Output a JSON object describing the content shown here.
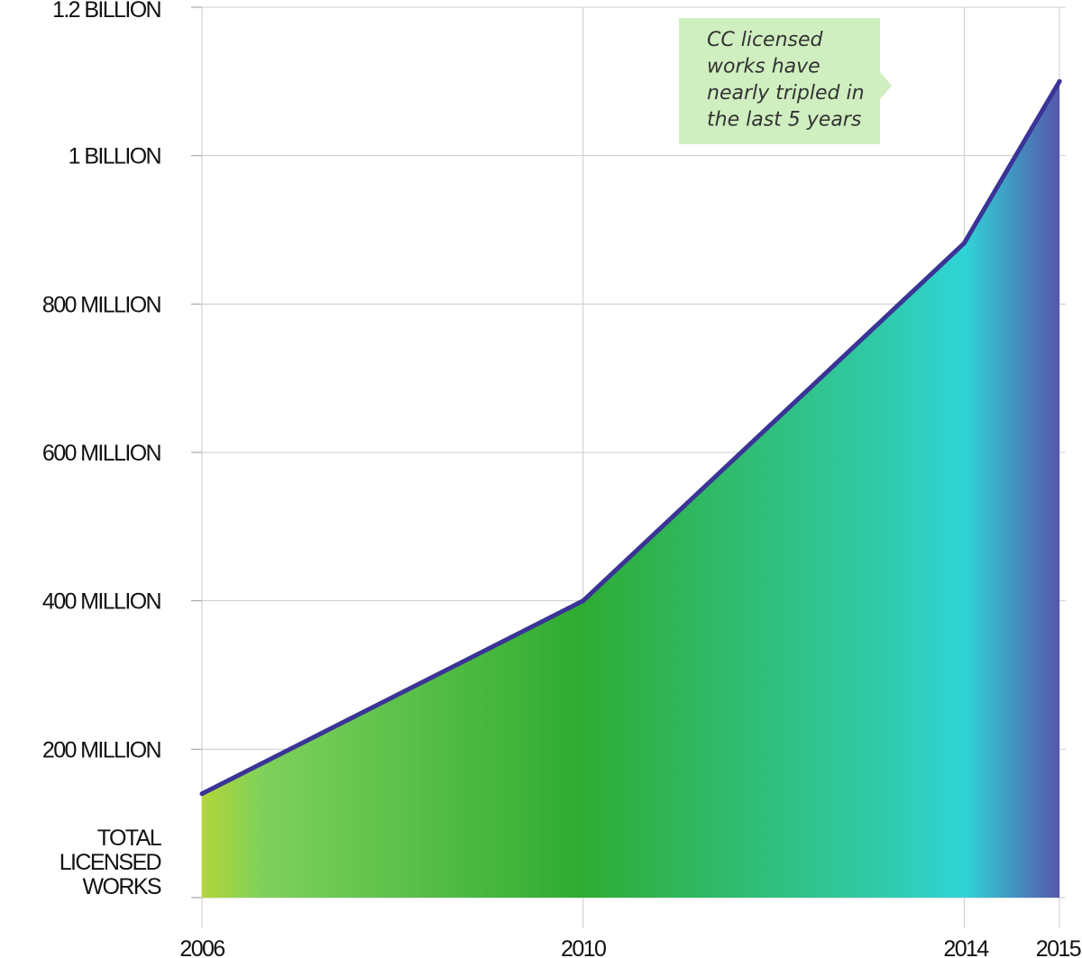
{
  "chart_data": {
    "type": "area",
    "title": "",
    "x": [
      2006,
      2010,
      2014,
      2015
    ],
    "series": [
      {
        "values": [
          140000000,
          400000000,
          882000000,
          1100000000
        ]
      }
    ],
    "xlim": [
      2006,
      2015
    ],
    "ylim": [
      0,
      1200000000
    ],
    "x_tick_labels": [
      "2006",
      "2010",
      "2014",
      "2015"
    ],
    "y_ticks": [
      0,
      200000000,
      400000000,
      600000000,
      800000000,
      1000000000,
      1200000000
    ],
    "y_tick_labels": [
      "",
      "200 MILLION",
      "400 MILLION",
      "600 MILLION",
      "800 MILLION",
      "1 BILLION",
      "1.2 BILLION"
    ],
    "ylabel_lines": [
      "TOTAL",
      "LICENSED",
      "WORKS"
    ],
    "grid": true,
    "colors": {
      "line": "#3a3496",
      "gradient": [
        "#b2d637",
        "#7fd15c",
        "#2fac32",
        "#30c9a5",
        "#2fd4d6",
        "#5557ac"
      ],
      "annotation_bg": "#d0efc0",
      "gridline": "#cccccc"
    },
    "annotation": {
      "lines": [
        "CC licensed",
        "works have",
        "nearly tripled in",
        "the last 5 years"
      ]
    }
  }
}
